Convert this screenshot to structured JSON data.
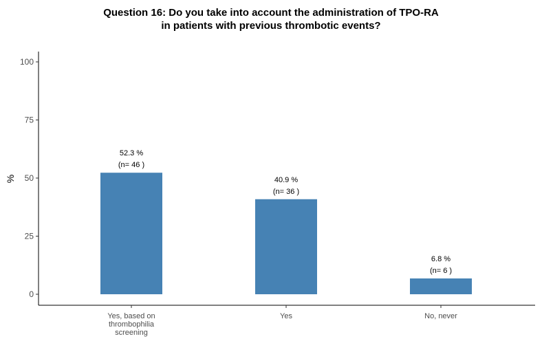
{
  "chart_data": {
    "type": "bar",
    "title_line1": "Question 16: Do you take into account the administration of TPO-RA",
    "title_line2": "in patients with previous thrombotic events?",
    "xlabel": "",
    "ylabel": "%",
    "ylim": [
      0,
      100
    ],
    "yticks": [
      "0",
      "25",
      "50",
      "75",
      "100"
    ],
    "categories": [
      [
        "Yes, based on",
        "thrombophilia",
        "screening"
      ],
      [
        "Yes"
      ],
      [
        "No, never"
      ]
    ],
    "values": [
      52.3,
      40.9,
      6.8
    ],
    "pct_labels": [
      "52.3 %",
      "40.9 %",
      "6.8 %"
    ],
    "n_labels": [
      "(n= 46 )",
      "(n= 36 )",
      "(n= 6 )"
    ],
    "bar_color": "#4682b4",
    "grid": false
  }
}
